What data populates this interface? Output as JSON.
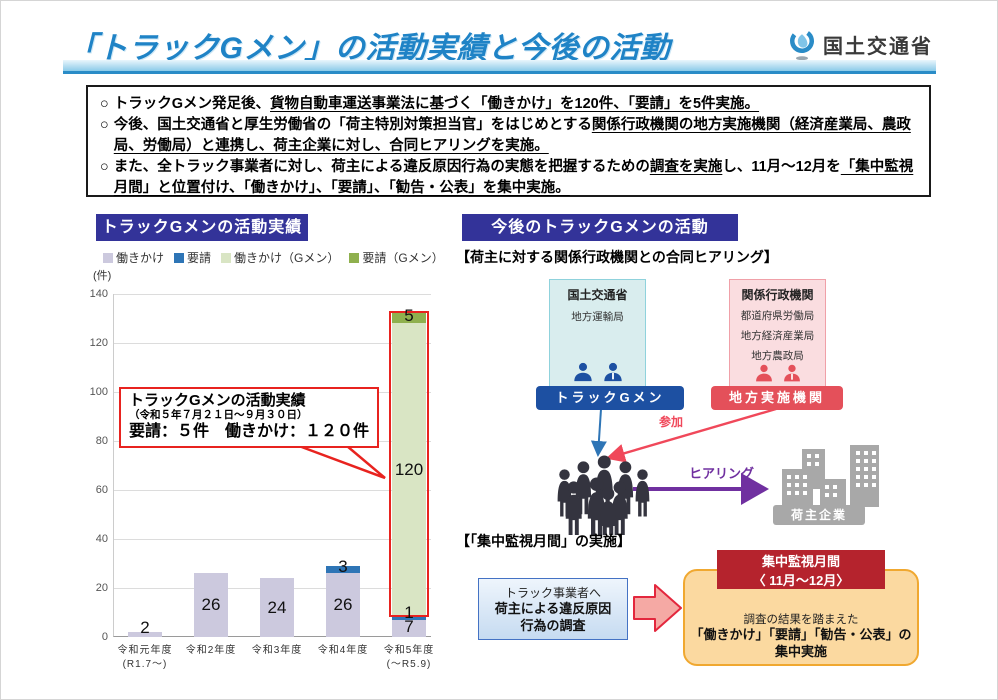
{
  "header": {
    "title": "「トラックGメン」の活動実績と今後の活動",
    "logo_text": "国土交通省"
  },
  "summary": {
    "marker": "○",
    "bullets": [
      {
        "segments": [
          {
            "t": "トラックGメン発足後、",
            "u": false
          },
          {
            "t": "貨物自動車運送事業法に基づく「働きかけ」を120件、「要請」を5件実施。",
            "u": true
          }
        ]
      },
      {
        "segments": [
          {
            "t": "今後、国土交通省と厚生労働省の「荷主特別対策担当官」をはじめとする",
            "u": false
          },
          {
            "t": "関係行政機関の地方実施機関（経済産業局、農政局、労働局）と連携し、荷主企業に対し、合同ヒアリングを実施。",
            "u": true
          }
        ]
      },
      {
        "segments": [
          {
            "t": "また、全トラック事業者に対し、荷主による違反原因行為の実態を把握するための",
            "u": false
          },
          {
            "t": "調査を実施",
            "u": true
          },
          {
            "t": "し、11月～12月を",
            "u": false
          },
          {
            "t": "「集中監視月間」と位置付け、「働きかけ」、「要請」、「勧告・公表」を集中実施。",
            "u": true
          }
        ]
      }
    ]
  },
  "left_panel": {
    "header": "トラックGメンの活動実績",
    "unit_label": "(件)",
    "callout": {
      "line1": "トラックGメンの活動実績",
      "line2": "（令和５年７月２１日～９月３０日）",
      "line3": "要請：５件　働きかけ：１２０件"
    }
  },
  "chart_data": {
    "type": "bar",
    "stacked": true,
    "title": "トラックGメンの活動実績",
    "xlabel": "",
    "ylabel": "件",
    "ylim": [
      0,
      140
    ],
    "yticks": [
      0,
      20,
      40,
      60,
      80,
      100,
      120,
      140
    ],
    "grid": true,
    "legend_position": "top",
    "categories": [
      "令和元年度\n(R1.7～)",
      "令和2年度",
      "令和3年度",
      "令和4年度",
      "令和5年度\n(～R5.9)"
    ],
    "series": [
      {
        "name": "働きかけ",
        "color": "#ccc9de",
        "values": [
          2,
          26,
          24,
          26,
          7
        ]
      },
      {
        "name": "要請",
        "color": "#2e75b6",
        "values": [
          0,
          0,
          0,
          3,
          1
        ]
      },
      {
        "name": "働きかけ（Gメン）",
        "color": "#d9e5c4",
        "values": [
          0,
          0,
          0,
          0,
          120
        ]
      },
      {
        "name": "要請（Gメン）",
        "color": "#8fb04e",
        "values": [
          0,
          0,
          0,
          0,
          5
        ]
      }
    ],
    "value_labels": [
      {
        "text": "2",
        "cat": 0,
        "at": 3.5
      },
      {
        "text": "26",
        "cat": 1,
        "at": 13
      },
      {
        "text": "24",
        "cat": 2,
        "at": 12
      },
      {
        "text": "26",
        "cat": 3,
        "at": 13
      },
      {
        "text": "3",
        "cat": 3,
        "at": 28.5
      },
      {
        "text": "5",
        "cat": 4,
        "at": 131
      },
      {
        "text": "120",
        "cat": 4,
        "at": 68
      },
      {
        "text": "1",
        "cat": 4,
        "at": 9.8
      },
      {
        "text": "7",
        "cat": 4,
        "at": 4
      }
    ],
    "highlight": {
      "category_index": 4,
      "from_value": 8,
      "to_value": 133
    }
  },
  "right_panel": {
    "header": "今後のトラックGメンの活動",
    "section1_title": "【荷主に対する関係行政機関との合同ヒアリング】",
    "mlit_box": {
      "title": "国土交通省",
      "item1": "地方運輸局"
    },
    "related_box": {
      "title": "関係行政機関",
      "item1": "都道府県労働局",
      "item2": "地方経済産業局",
      "item3": "地方農政局"
    },
    "gmen_badge": "トラックGメン",
    "local_badge": "地方実施機関",
    "sanka_label": "参加",
    "hearing_label": "ヒアリング",
    "shipper_label": "荷主企業",
    "section2_title": "【「集中監視月間」の実施】",
    "survey_box": {
      "line1": "トラック事業者へ",
      "line2": "荷主による違反原因",
      "line3": "行為の調査"
    },
    "monitor_box": {
      "header_line1": "集中監視月間",
      "header_line2": "〈 11月～12月〉",
      "body_line1": "調査の結果を踏まえた",
      "body_line2": "「働きかけ」「要請」「勧告・公表」の",
      "body_line3": "集中実施"
    }
  },
  "colors": {
    "title_blue": "#1f83c6",
    "panel_navy": "#333399",
    "accent_red": "#e8231f",
    "gmen_blue": "#1d50a2",
    "local_red": "#e4505a",
    "participation_pink": "#f0485a",
    "hearing_purple": "#7030a0",
    "monitor_dark_red": "#b5232d",
    "monitor_orange_fill": "#fbd9a0",
    "monitor_orange_border": "#f0a830",
    "gray_building": "#a8a8a8"
  }
}
